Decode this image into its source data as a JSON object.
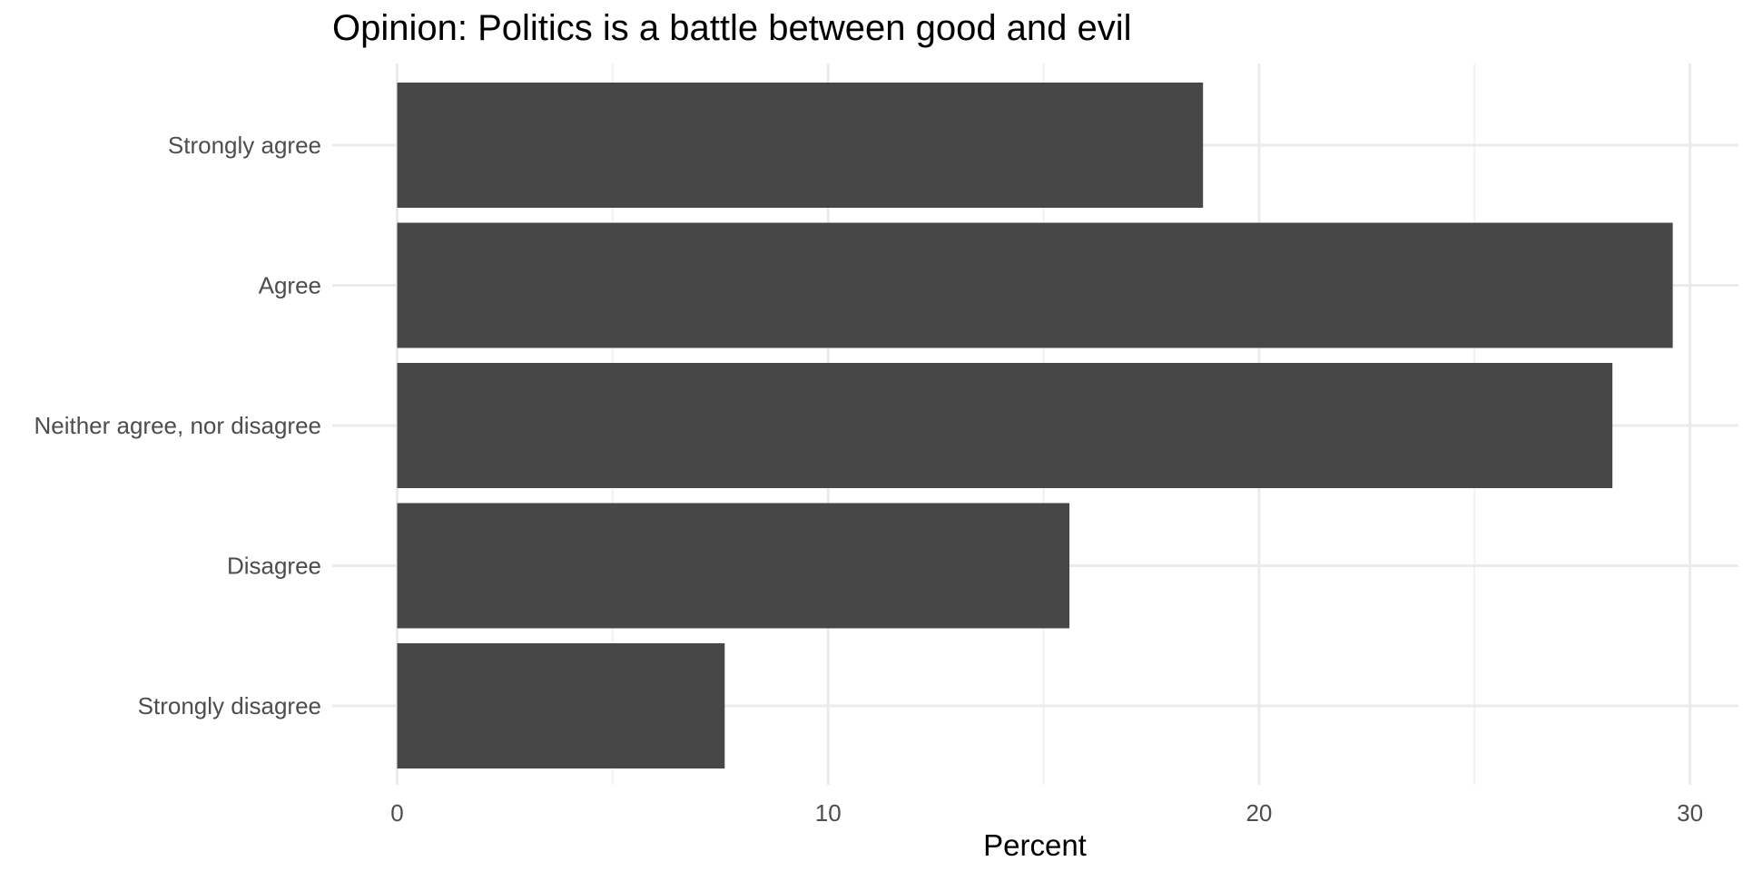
{
  "chart_data": {
    "type": "bar",
    "orientation": "horizontal",
    "title": "Opinion: Politics is a battle between good and evil",
    "xlabel": "Percent",
    "ylabel": "",
    "categories": [
      "Strongly agree",
      "Agree",
      "Neither agree, nor disagree",
      "Disagree",
      "Strongly disagree"
    ],
    "values": [
      18.7,
      29.6,
      28.2,
      15.6,
      7.6
    ],
    "xlim": [
      0,
      31
    ],
    "xticks": [
      0,
      10,
      20,
      30
    ],
    "xtick_labels": [
      "0",
      "10",
      "20",
      "30"
    ],
    "grid": true,
    "legend": "none",
    "bar_color": "#474747"
  }
}
